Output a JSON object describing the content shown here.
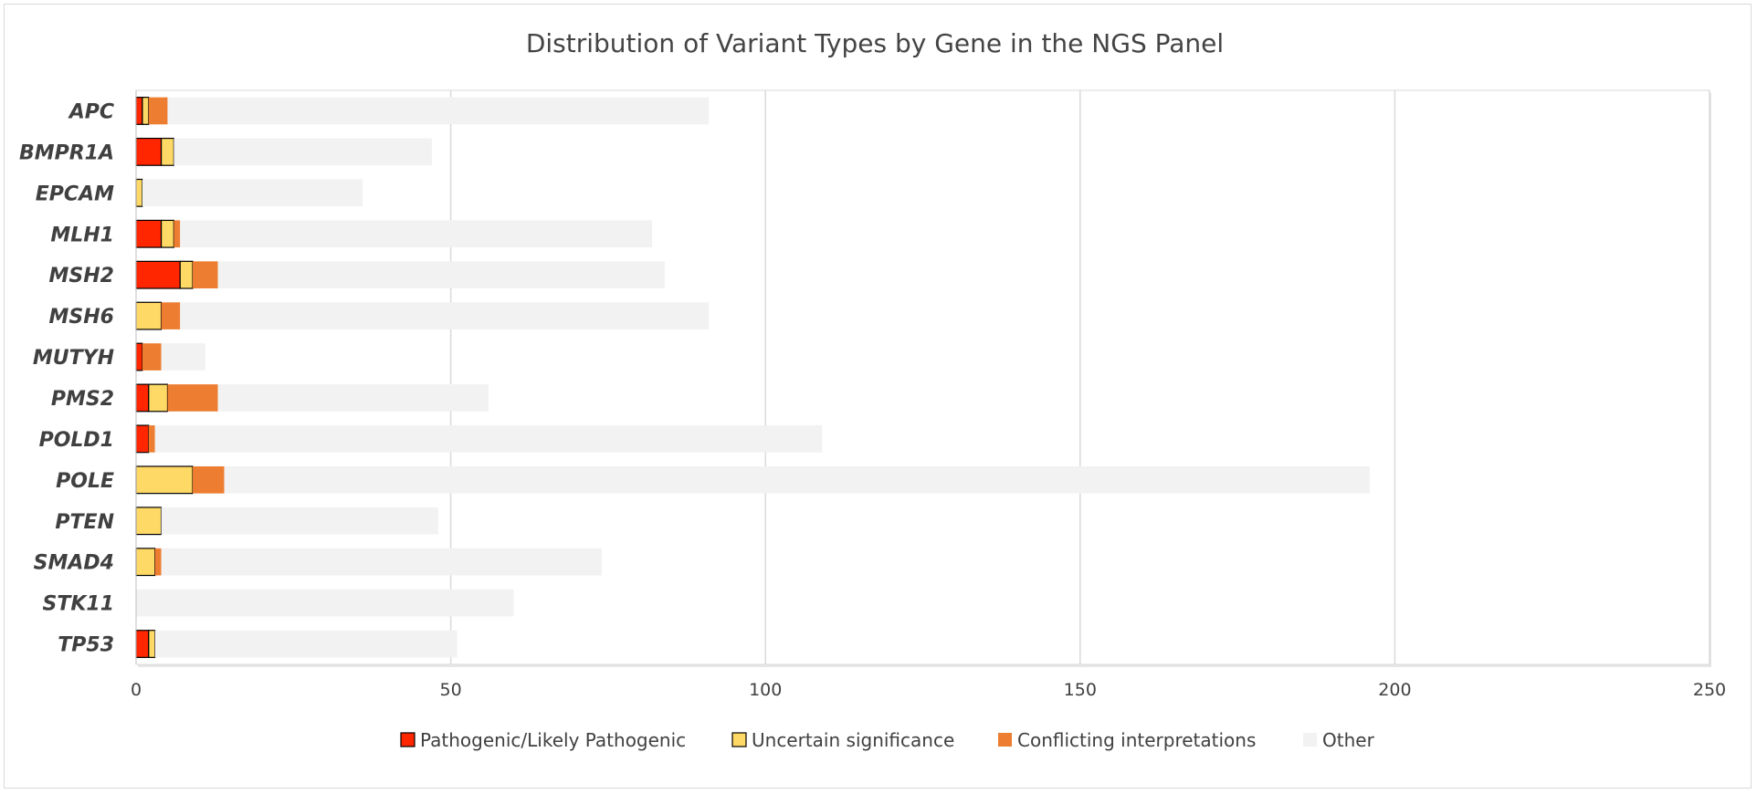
{
  "chart_data": {
    "type": "bar",
    "orientation": "horizontal",
    "stacked": true,
    "title": "Distribution of Variant Types by Gene in the NGS Panel",
    "xlabel": "",
    "ylabel": "",
    "xlim": [
      0,
      250
    ],
    "x_ticks": [
      0,
      50,
      100,
      150,
      200,
      250
    ],
    "grid": true,
    "legend_position": "bottom",
    "categories": [
      "APC",
      "BMPR1A",
      "EPCAM",
      "MLH1",
      "MSH2",
      "MSH6",
      "MUTYH",
      "PMS2",
      "POLD1",
      "POLE",
      "PTEN",
      "SMAD4",
      "STK11",
      "TP53"
    ],
    "series": [
      {
        "name": "Pathogenic/Likely Pathogenic",
        "color": "#ff2600",
        "outlined": true,
        "values": [
          1,
          4,
          0,
          4,
          7,
          0,
          1,
          2,
          2,
          0,
          0,
          0,
          0,
          2
        ]
      },
      {
        "name": "Uncertain significance",
        "color": "#ffd966",
        "outlined": true,
        "values": [
          1,
          2,
          1,
          2,
          2,
          4,
          0,
          3,
          0,
          9,
          4,
          3,
          0,
          1
        ]
      },
      {
        "name": "Conflicting interpretations",
        "color": "#ed7d31",
        "outlined": false,
        "values": [
          3,
          0,
          0,
          1,
          4,
          3,
          3,
          8,
          1,
          5,
          0,
          1,
          0,
          0
        ]
      },
      {
        "name": "Other",
        "color": "#f2f2f2",
        "outlined": false,
        "values": [
          86,
          41,
          35,
          75,
          71,
          84,
          7,
          43,
          106,
          182,
          44,
          70,
          60,
          48
        ]
      }
    ]
  }
}
